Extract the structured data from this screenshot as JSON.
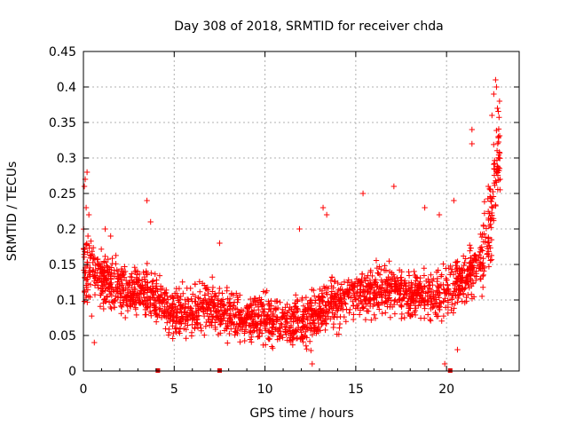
{
  "chart_data": {
    "type": "scatter",
    "title": "Day 308 of 2018, SRMTID for receiver chda",
    "xlabel": "GPS time / hours",
    "ylabel": "SRMTID / TECUs",
    "xlim": [
      0,
      24
    ],
    "ylim": [
      0,
      0.45
    ],
    "xticks": [
      0,
      5,
      10,
      15,
      20
    ],
    "xtick_labels": [
      "0",
      "5",
      "10",
      "15",
      "20"
    ],
    "yticks": [
      0,
      0.05,
      0.1,
      0.15,
      0.2,
      0.25,
      0.3,
      0.35,
      0.4,
      0.45
    ],
    "ytick_labels": [
      "0",
      "0.05",
      "0.1",
      "0.15",
      "0.2",
      "0.25",
      "0.3",
      "0.35",
      "0.4",
      "0.45"
    ],
    "grid": true,
    "marker": "+",
    "color": "#ff0000",
    "gap_marker_color": "#dd0000",
    "data_gaps_hours": [
      4.1,
      7.5,
      20.2
    ],
    "trend": [
      {
        "x": 0.0,
        "y": 0.14
      },
      {
        "x": 0.3,
        "y": 0.15
      },
      {
        "x": 1.0,
        "y": 0.13
      },
      {
        "x": 2.0,
        "y": 0.115
      },
      {
        "x": 3.0,
        "y": 0.11
      },
      {
        "x": 4.0,
        "y": 0.105
      },
      {
        "x": 5.0,
        "y": 0.08
      },
      {
        "x": 6.0,
        "y": 0.085
      },
      {
        "x": 7.0,
        "y": 0.09
      },
      {
        "x": 8.0,
        "y": 0.08
      },
      {
        "x": 9.0,
        "y": 0.075
      },
      {
        "x": 10.0,
        "y": 0.075
      },
      {
        "x": 11.0,
        "y": 0.07
      },
      {
        "x": 12.0,
        "y": 0.065
      },
      {
        "x": 13.0,
        "y": 0.085
      },
      {
        "x": 14.0,
        "y": 0.1
      },
      {
        "x": 15.0,
        "y": 0.11
      },
      {
        "x": 16.0,
        "y": 0.11
      },
      {
        "x": 17.0,
        "y": 0.115
      },
      {
        "x": 18.0,
        "y": 0.11
      },
      {
        "x": 19.0,
        "y": 0.11
      },
      {
        "x": 20.0,
        "y": 0.11
      },
      {
        "x": 21.0,
        "y": 0.13
      },
      {
        "x": 22.0,
        "y": 0.16
      },
      {
        "x": 22.5,
        "y": 0.22
      },
      {
        "x": 22.9,
        "y": 0.3
      }
    ],
    "points": [
      {
        "x": 0.05,
        "y": 0.26
      },
      {
        "x": 0.1,
        "y": 0.27
      },
      {
        "x": 0.15,
        "y": 0.23
      },
      {
        "x": 0.2,
        "y": 0.28
      },
      {
        "x": 0.25,
        "y": 0.19
      },
      {
        "x": 0.3,
        "y": 0.22
      },
      {
        "x": 0.6,
        "y": 0.04
      },
      {
        "x": 1.2,
        "y": 0.2
      },
      {
        "x": 1.5,
        "y": 0.19
      },
      {
        "x": 3.5,
        "y": 0.24
      },
      {
        "x": 3.7,
        "y": 0.21
      },
      {
        "x": 7.5,
        "y": 0.18
      },
      {
        "x": 11.9,
        "y": 0.2
      },
      {
        "x": 12.6,
        "y": 0.01
      },
      {
        "x": 13.2,
        "y": 0.23
      },
      {
        "x": 13.4,
        "y": 0.22
      },
      {
        "x": 15.4,
        "y": 0.25
      },
      {
        "x": 17.1,
        "y": 0.26
      },
      {
        "x": 18.8,
        "y": 0.23
      },
      {
        "x": 19.6,
        "y": 0.22
      },
      {
        "x": 19.9,
        "y": 0.01
      },
      {
        "x": 20.4,
        "y": 0.24
      },
      {
        "x": 20.6,
        "y": 0.03
      },
      {
        "x": 21.4,
        "y": 0.34
      },
      {
        "x": 21.4,
        "y": 0.32
      },
      {
        "x": 22.3,
        "y": 0.26
      },
      {
        "x": 22.5,
        "y": 0.36
      },
      {
        "x": 22.6,
        "y": 0.39
      },
      {
        "x": 22.7,
        "y": 0.41
      },
      {
        "x": 22.75,
        "y": 0.4
      },
      {
        "x": 22.8,
        "y": 0.37
      },
      {
        "x": 22.85,
        "y": 0.33
      },
      {
        "x": 22.9,
        "y": 0.3
      },
      {
        "x": 22.95,
        "y": 0.27
      }
    ]
  }
}
